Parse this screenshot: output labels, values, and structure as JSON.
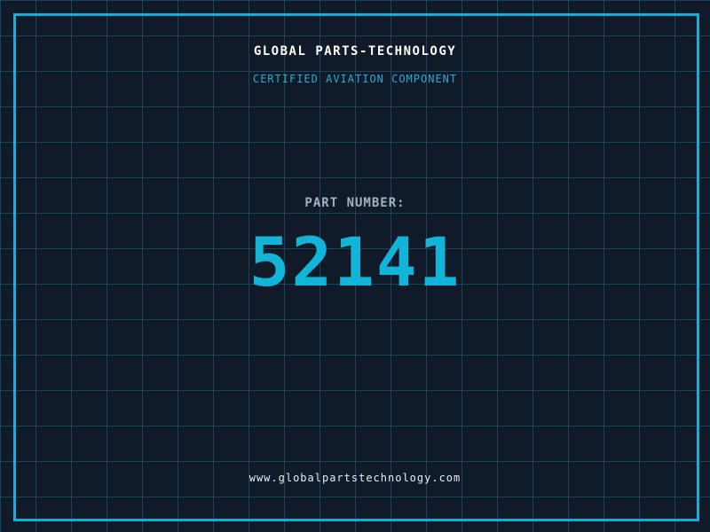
{
  "header": {
    "title": "GLOBAL PARTS-TECHNOLOGY",
    "subtitle": "CERTIFIED AVIATION COMPONENT"
  },
  "part": {
    "label": "PART NUMBER:",
    "number": "52141"
  },
  "footer": {
    "url": "www.globalpartstechnology.com"
  },
  "colors": {
    "background": "#111a29",
    "grid_line": "#17455c",
    "border": "#0cb2d8",
    "accent_cyan": "#12b4d8",
    "subtitle_cyan": "#2da9ce",
    "title_white": "#ffffff",
    "label_gray": "#a3b1bf",
    "url_light": "#e6edf3"
  }
}
